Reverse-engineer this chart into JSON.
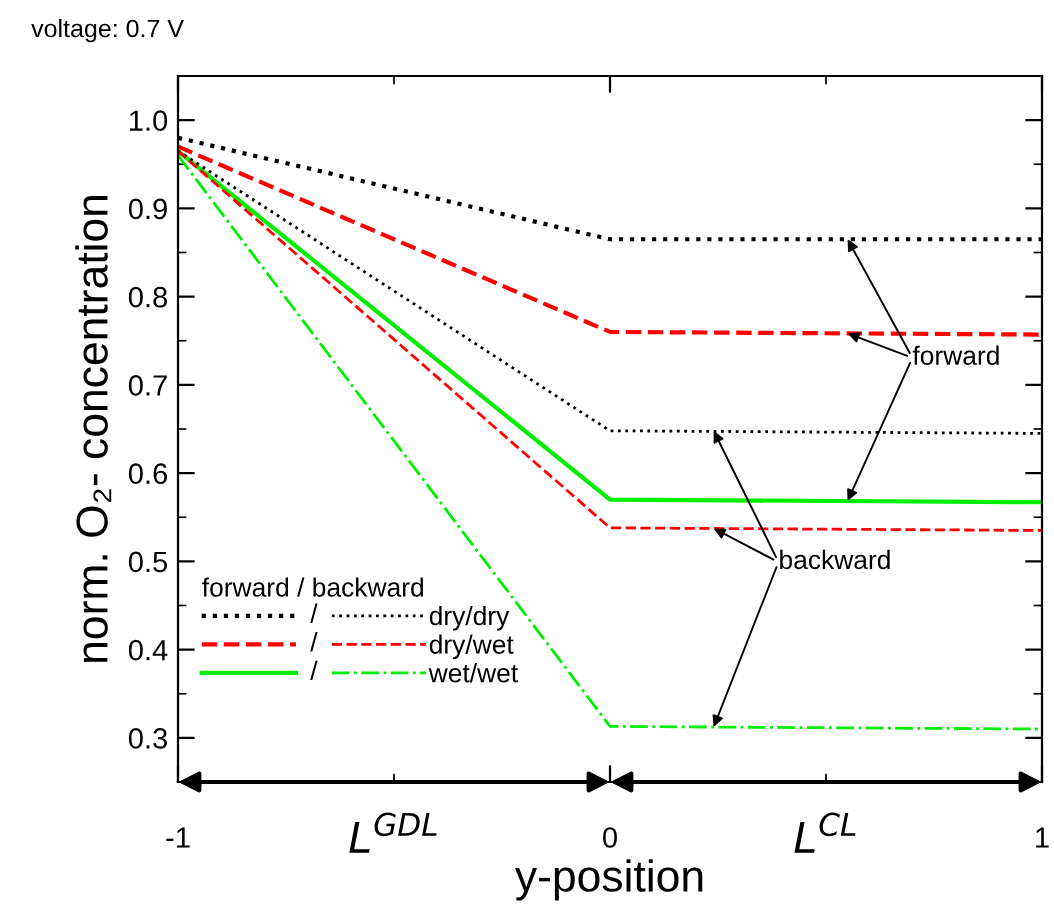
{
  "chart_data": {
    "type": "line",
    "title": "voltage: 0.7 V",
    "xlabel": "y-position",
    "ylabel": "norm. O₂- concentration",
    "legend_title": "forward / backward",
    "legend": "bottom left",
    "grid": false,
    "marker": "none",
    "x": [
      -1,
      0,
      1
    ],
    "xlim": [
      -1,
      1
    ],
    "xticks": [
      -1,
      {
        "value": -0.5,
        "label": null
      },
      0,
      {
        "value": 0.5,
        "label": null
      },
      1
    ],
    "ylim": [
      0.25,
      1.05
    ],
    "yticks": [
      {
        "value": 0.25,
        "label": null
      },
      0.3,
      {
        "value": 0.35,
        "label": null
      },
      0.4,
      {
        "value": 0.45,
        "label": null
      },
      0.5,
      {
        "value": 0.55,
        "label": null
      },
      0.6,
      {
        "value": 0.65,
        "label": null
      },
      0.7,
      {
        "value": 0.75,
        "label": null
      },
      0.8,
      {
        "value": 0.85,
        "label": null
      },
      0.9,
      {
        "value": 0.95,
        "label": null
      },
      {
        "value": 1.0,
        "label": "1.0"
      },
      {
        "value": 1.05,
        "label": null
      }
    ],
    "series": [
      {
        "color": "#000000",
        "line_style": "dotted",
        "values": [
          0.98,
          0.865,
          0.865
        ]
      },
      {
        "color": "#ff0000",
        "line_style": "dashed",
        "values": [
          0.97,
          0.76,
          0.757
        ]
      },
      {
        "color": "#00ee00",
        "line_style": "solid",
        "values": [
          0.965,
          0.57,
          0.567
        ]
      },
      {
        "name": "dry/dry",
        "color": "#000000",
        "line_style": "dotted",
        "values": [
          0.965,
          0.648,
          0.645
        ]
      },
      {
        "name": "dry/wet",
        "color": "#ff0000",
        "line_style": "dashed",
        "values": [
          0.965,
          0.538,
          0.535
        ]
      },
      {
        "name": "wet/wet",
        "color": "#00ee00",
        "line_style": "dashdot",
        "values": [
          0.96,
          0.313,
          0.31
        ]
      }
    ],
    "annotations": [
      {
        "text": "forward",
        "x": 0.55,
        "y": 0.865
      },
      {
        "text": "backward",
        "x": 0.24,
        "y": 0.648
      },
      "L$^{GDL}$",
      "L$^{CL}$",
      "/"
    ]
  }
}
